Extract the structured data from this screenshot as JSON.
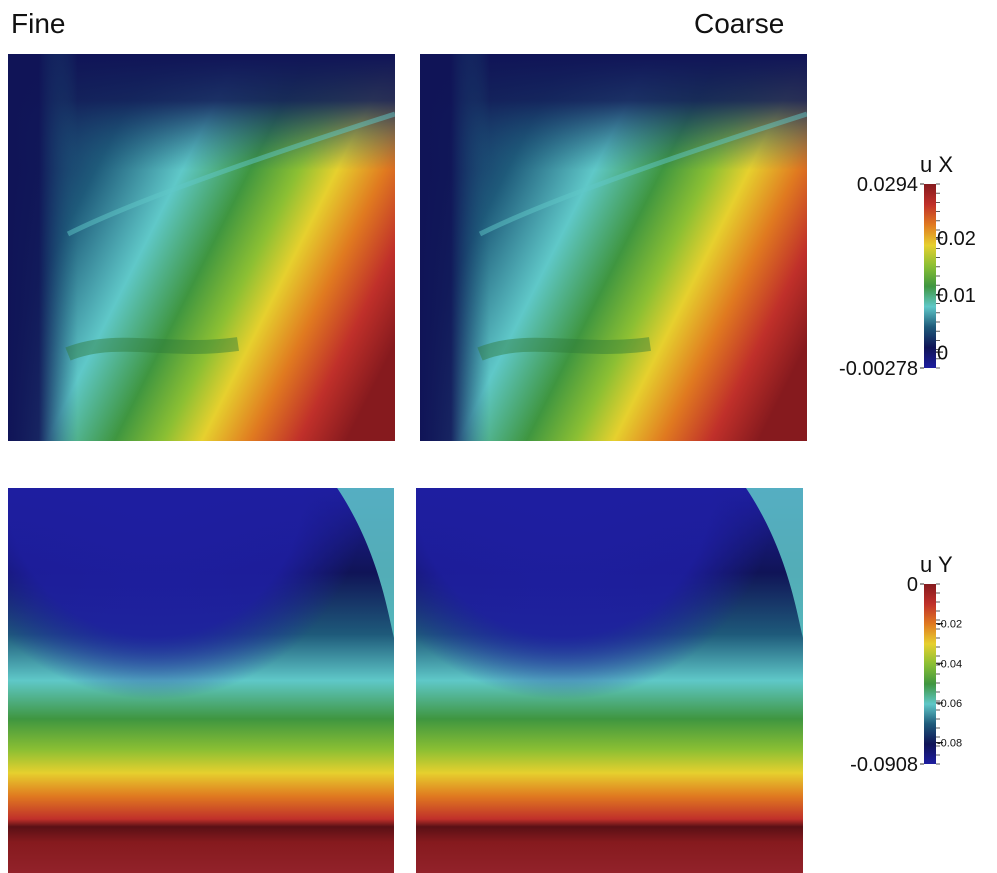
{
  "columns": {
    "fine": "Fine",
    "coarse": "Coarse"
  },
  "colormap": [
    "#1e1ea0",
    "#101457",
    "#1e5a7a",
    "#5fc8c8",
    "#3f9640",
    "#8bbf33",
    "#e6d02e",
    "#e07a20",
    "#c0302a",
    "#861a1e"
  ],
  "colorbars": {
    "ux": {
      "title": "u X",
      "min_label": "-0.00278",
      "max_label": "0.0294",
      "min": -0.00278,
      "max": 0.0294,
      "ticks": [
        {
          "value": 0.02,
          "label": "0.02"
        },
        {
          "value": 0.01,
          "label": "0.01"
        },
        {
          "value": 0,
          "label": "0"
        }
      ]
    },
    "uy": {
      "title": "u Y",
      "min_label": "-0.0908",
      "max_label": "0",
      "min": -0.0908,
      "max": 0,
      "ticks": [
        {
          "value": -0.02,
          "label": "-0.02"
        },
        {
          "value": -0.04,
          "label": "-0.04"
        },
        {
          "value": -0.06,
          "label": "-0.06"
        },
        {
          "value": -0.08,
          "label": "-0.08"
        }
      ]
    }
  }
}
